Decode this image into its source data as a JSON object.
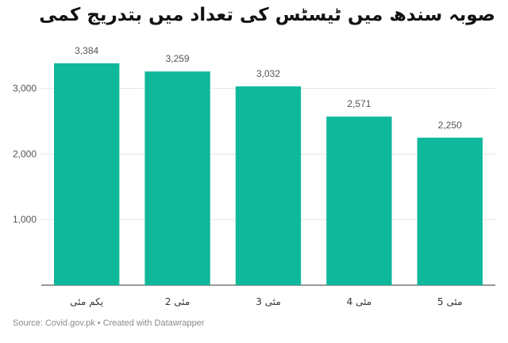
{
  "title": "صوبہ سندھ میں ٹیسٹس کی تعداد میں بتدریج کمی",
  "source": "Source: Covid.gov.pk • Created with Datawrapper",
  "chart_data": {
    "type": "bar",
    "title": "صوبہ سندھ میں ٹیسٹس کی تعداد میں بتدریج کمی",
    "categories": [
      "یکم مئی",
      "مئی 2",
      "مئی 3",
      "مئی 4",
      "مئی 5"
    ],
    "values": [
      3384,
      3259,
      3032,
      2571,
      2250
    ],
    "value_labels": [
      "3,384",
      "3,259",
      "3,032",
      "2,571",
      "2,250"
    ],
    "yticks": [
      1000,
      2000,
      3000
    ],
    "ytick_labels": [
      "1,000",
      "2,000",
      "3,000"
    ],
    "ylim": [
      0,
      3600
    ],
    "grid": true,
    "bar_color": "#10b89b",
    "grid_color": "#e5e5e5",
    "axis_color": "#333333"
  }
}
